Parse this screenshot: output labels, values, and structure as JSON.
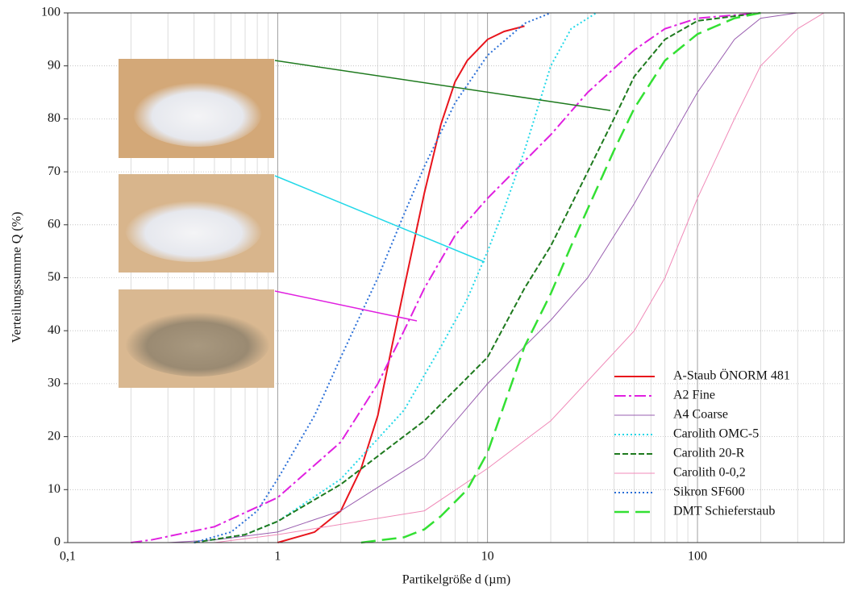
{
  "chart_data": {
    "type": "line",
    "xlabel": "Partikelgröße d (µm)",
    "ylabel": "Verteilungssumme Q (%)",
    "xscale": "log",
    "xlim": [
      0.1,
      500
    ],
    "ylim": [
      0,
      100
    ],
    "xticks": [
      {
        "value": 0.1,
        "label": "0,1"
      },
      1,
      10,
      100
    ],
    "yticks": [
      0,
      10,
      20,
      30,
      40,
      50,
      60,
      70,
      80,
      90,
      100
    ],
    "grid": true,
    "legend": "lower right",
    "series": [
      {
        "name": "A-Staub ÖNORM 481",
        "color": "#e8141c",
        "style": "solid",
        "width": 2,
        "x": [
          1,
          1.5,
          2,
          2.5,
          3,
          3.5,
          4,
          5,
          6,
          7,
          8,
          10,
          12,
          15
        ],
        "values": [
          0,
          2,
          6,
          14,
          24,
          37,
          48,
          66,
          79,
          87,
          91,
          95,
          96.5,
          97.5
        ]
      },
      {
        "name": "A2 Fine",
        "color": "#e020e0",
        "style": "dashdot",
        "width": 2,
        "x": [
          0.2,
          0.25,
          0.5,
          1,
          2,
          3,
          4,
          5,
          7,
          10,
          20,
          30,
          50,
          70,
          100,
          200
        ],
        "values": [
          0,
          0.5,
          3,
          8.5,
          19,
          30,
          40,
          48,
          58,
          65,
          77,
          85,
          93,
          97,
          99,
          100
        ]
      },
      {
        "name": "A4 Coarse",
        "color": "#9a5fb0",
        "style": "solid",
        "width": 1,
        "x": [
          0.3,
          0.5,
          1,
          2,
          5,
          10,
          20,
          30,
          50,
          100,
          150,
          200,
          300
        ],
        "values": [
          0,
          0.5,
          2,
          6,
          16,
          30,
          42,
          50,
          64,
          85,
          95,
          99,
          100
        ]
      },
      {
        "name": "Carolith OMC-5",
        "color": "#22d8e8",
        "style": "dotted",
        "width": 2,
        "x": [
          0.4,
          0.7,
          1,
          2,
          4,
          6,
          8,
          10,
          12,
          15,
          20,
          25,
          33
        ],
        "values": [
          0,
          1.5,
          4,
          12,
          25,
          37,
          46,
          55,
          63,
          74,
          90,
          97,
          100
        ]
      },
      {
        "name": "Carolith 20-R",
        "color": "#1e7a1e",
        "style": "dashed",
        "width": 2,
        "x": [
          0.4,
          0.7,
          1,
          2,
          5,
          10,
          15,
          20,
          30,
          40,
          50,
          70,
          100,
          200
        ],
        "values": [
          0,
          1.5,
          4,
          11,
          23,
          35,
          48,
          56,
          70,
          80,
          88,
          95,
          98.5,
          100
        ]
      },
      {
        "name": "Carolith 0-0,2",
        "color": "#f08ab8",
        "style": "solid",
        "width": 1,
        "x": [
          0.5,
          1,
          5,
          10,
          20,
          50,
          70,
          100,
          150,
          200,
          300,
          400
        ],
        "values": [
          0,
          1.5,
          6,
          14,
          23,
          40,
          50,
          65,
          80,
          90,
          97,
          100
        ]
      },
      {
        "name": "Sikron SF600",
        "color": "#2a6fd8",
        "style": "dotted",
        "width": 2,
        "x": [
          0.4,
          0.6,
          0.8,
          1,
          1.5,
          2,
          3,
          4,
          5,
          7,
          10,
          15,
          20
        ],
        "values": [
          0,
          2,
          6,
          12,
          24,
          35,
          50,
          62,
          71,
          83,
          92,
          98,
          100
        ]
      },
      {
        "name": "DMT Schieferstaub",
        "color": "#33e033",
        "style": "longdash",
        "width": 2.5,
        "x": [
          2.5,
          4,
          5,
          6,
          8,
          10,
          15,
          20,
          25,
          30,
          40,
          50,
          70,
          100,
          150,
          200
        ],
        "values": [
          0,
          1,
          2.5,
          5,
          10,
          17,
          37,
          47,
          56,
          63,
          74,
          82,
          91,
          96,
          99,
          100
        ]
      }
    ]
  }
}
